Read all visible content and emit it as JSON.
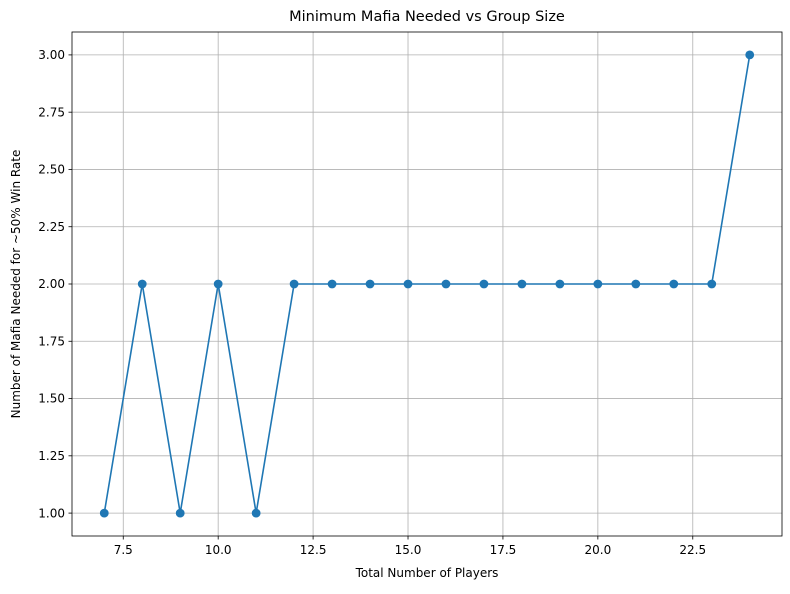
{
  "chart_data": {
    "type": "line",
    "title": "Minimum Mafia Needed vs Group Size",
    "xlabel": "Total Number of Players",
    "ylabel": "Number of Mafia Needed for ~50% Win Rate",
    "x": [
      7,
      8,
      9,
      10,
      11,
      12,
      13,
      14,
      15,
      16,
      17,
      18,
      19,
      20,
      21,
      22,
      23,
      24
    ],
    "series": [
      {
        "values": [
          1,
          2,
          1,
          2,
          1,
          2,
          2,
          2,
          2,
          2,
          2,
          2,
          2,
          2,
          2,
          2,
          2,
          3
        ],
        "color": "#1f77b4",
        "marker": "circle"
      }
    ],
    "xlim": [
      6.15,
      24.85
    ],
    "ylim": [
      0.9,
      3.1
    ],
    "x_ticks": [
      "7.5",
      "10.0",
      "12.5",
      "15.0",
      "17.5",
      "20.0",
      "22.5"
    ],
    "y_ticks": [
      "1.00",
      "1.25",
      "1.50",
      "1.75",
      "2.00",
      "2.25",
      "2.50",
      "2.75",
      "3.00"
    ],
    "grid": true,
    "legend": "none"
  },
  "colors": {
    "line": "#1f77b4",
    "grid": "#b0b0b0",
    "axes": "#000000"
  }
}
